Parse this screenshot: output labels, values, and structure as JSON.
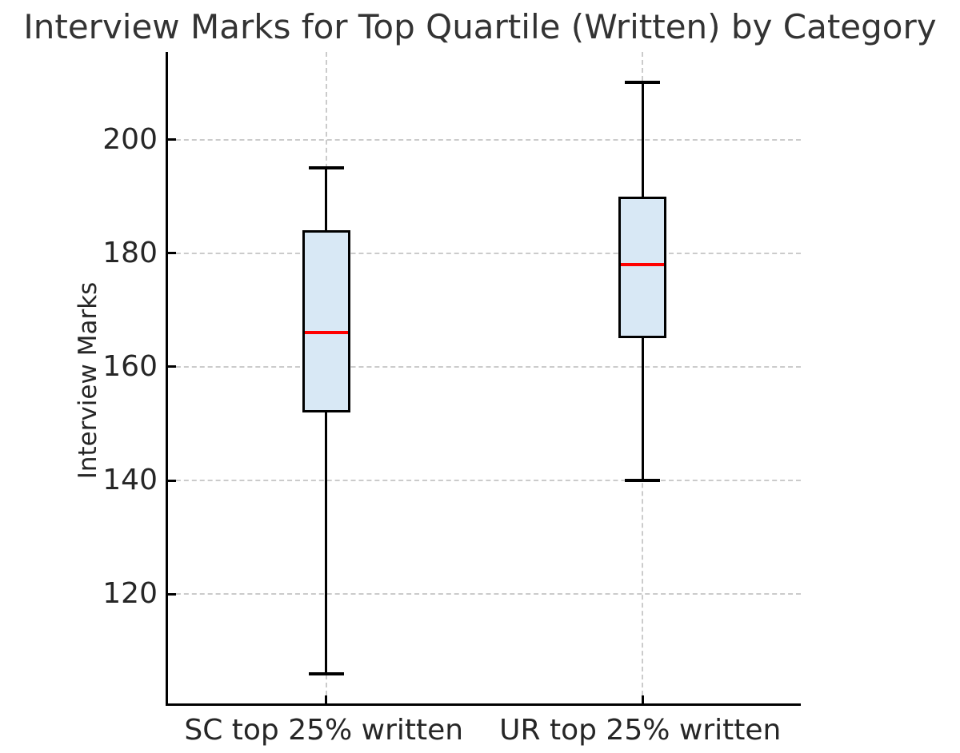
{
  "chart_data": {
    "type": "box",
    "title": "Interview Marks for Top Quartile (Written) by Category",
    "ylabel": "Interview Marks",
    "xlabel": "",
    "categories": [
      "SC top 25% written",
      "UR top 25% written"
    ],
    "series": [
      {
        "name": "SC top 25% written",
        "whisker_low": 106,
        "q1": 152,
        "median": 166,
        "q3": 184,
        "whisker_high": 195
      },
      {
        "name": "UR top 25% written",
        "whisker_low": 140,
        "q1": 165,
        "median": 178,
        "q3": 190,
        "whisker_high": 210
      }
    ],
    "yticks": [
      120,
      140,
      160,
      180,
      200
    ],
    "ylim": [
      100.8,
      215.4
    ],
    "grid": {
      "horizontal": true,
      "vertical": true,
      "style": "dashed"
    },
    "legend": "none",
    "colors": {
      "box_fill": "#d8e8f5",
      "box_edge": "#000000",
      "median": "#ff0000",
      "whisker": "#000000",
      "grid": "#cbcbcb",
      "text": "#262626",
      "title": "#333333",
      "background": "#ffffff"
    }
  }
}
